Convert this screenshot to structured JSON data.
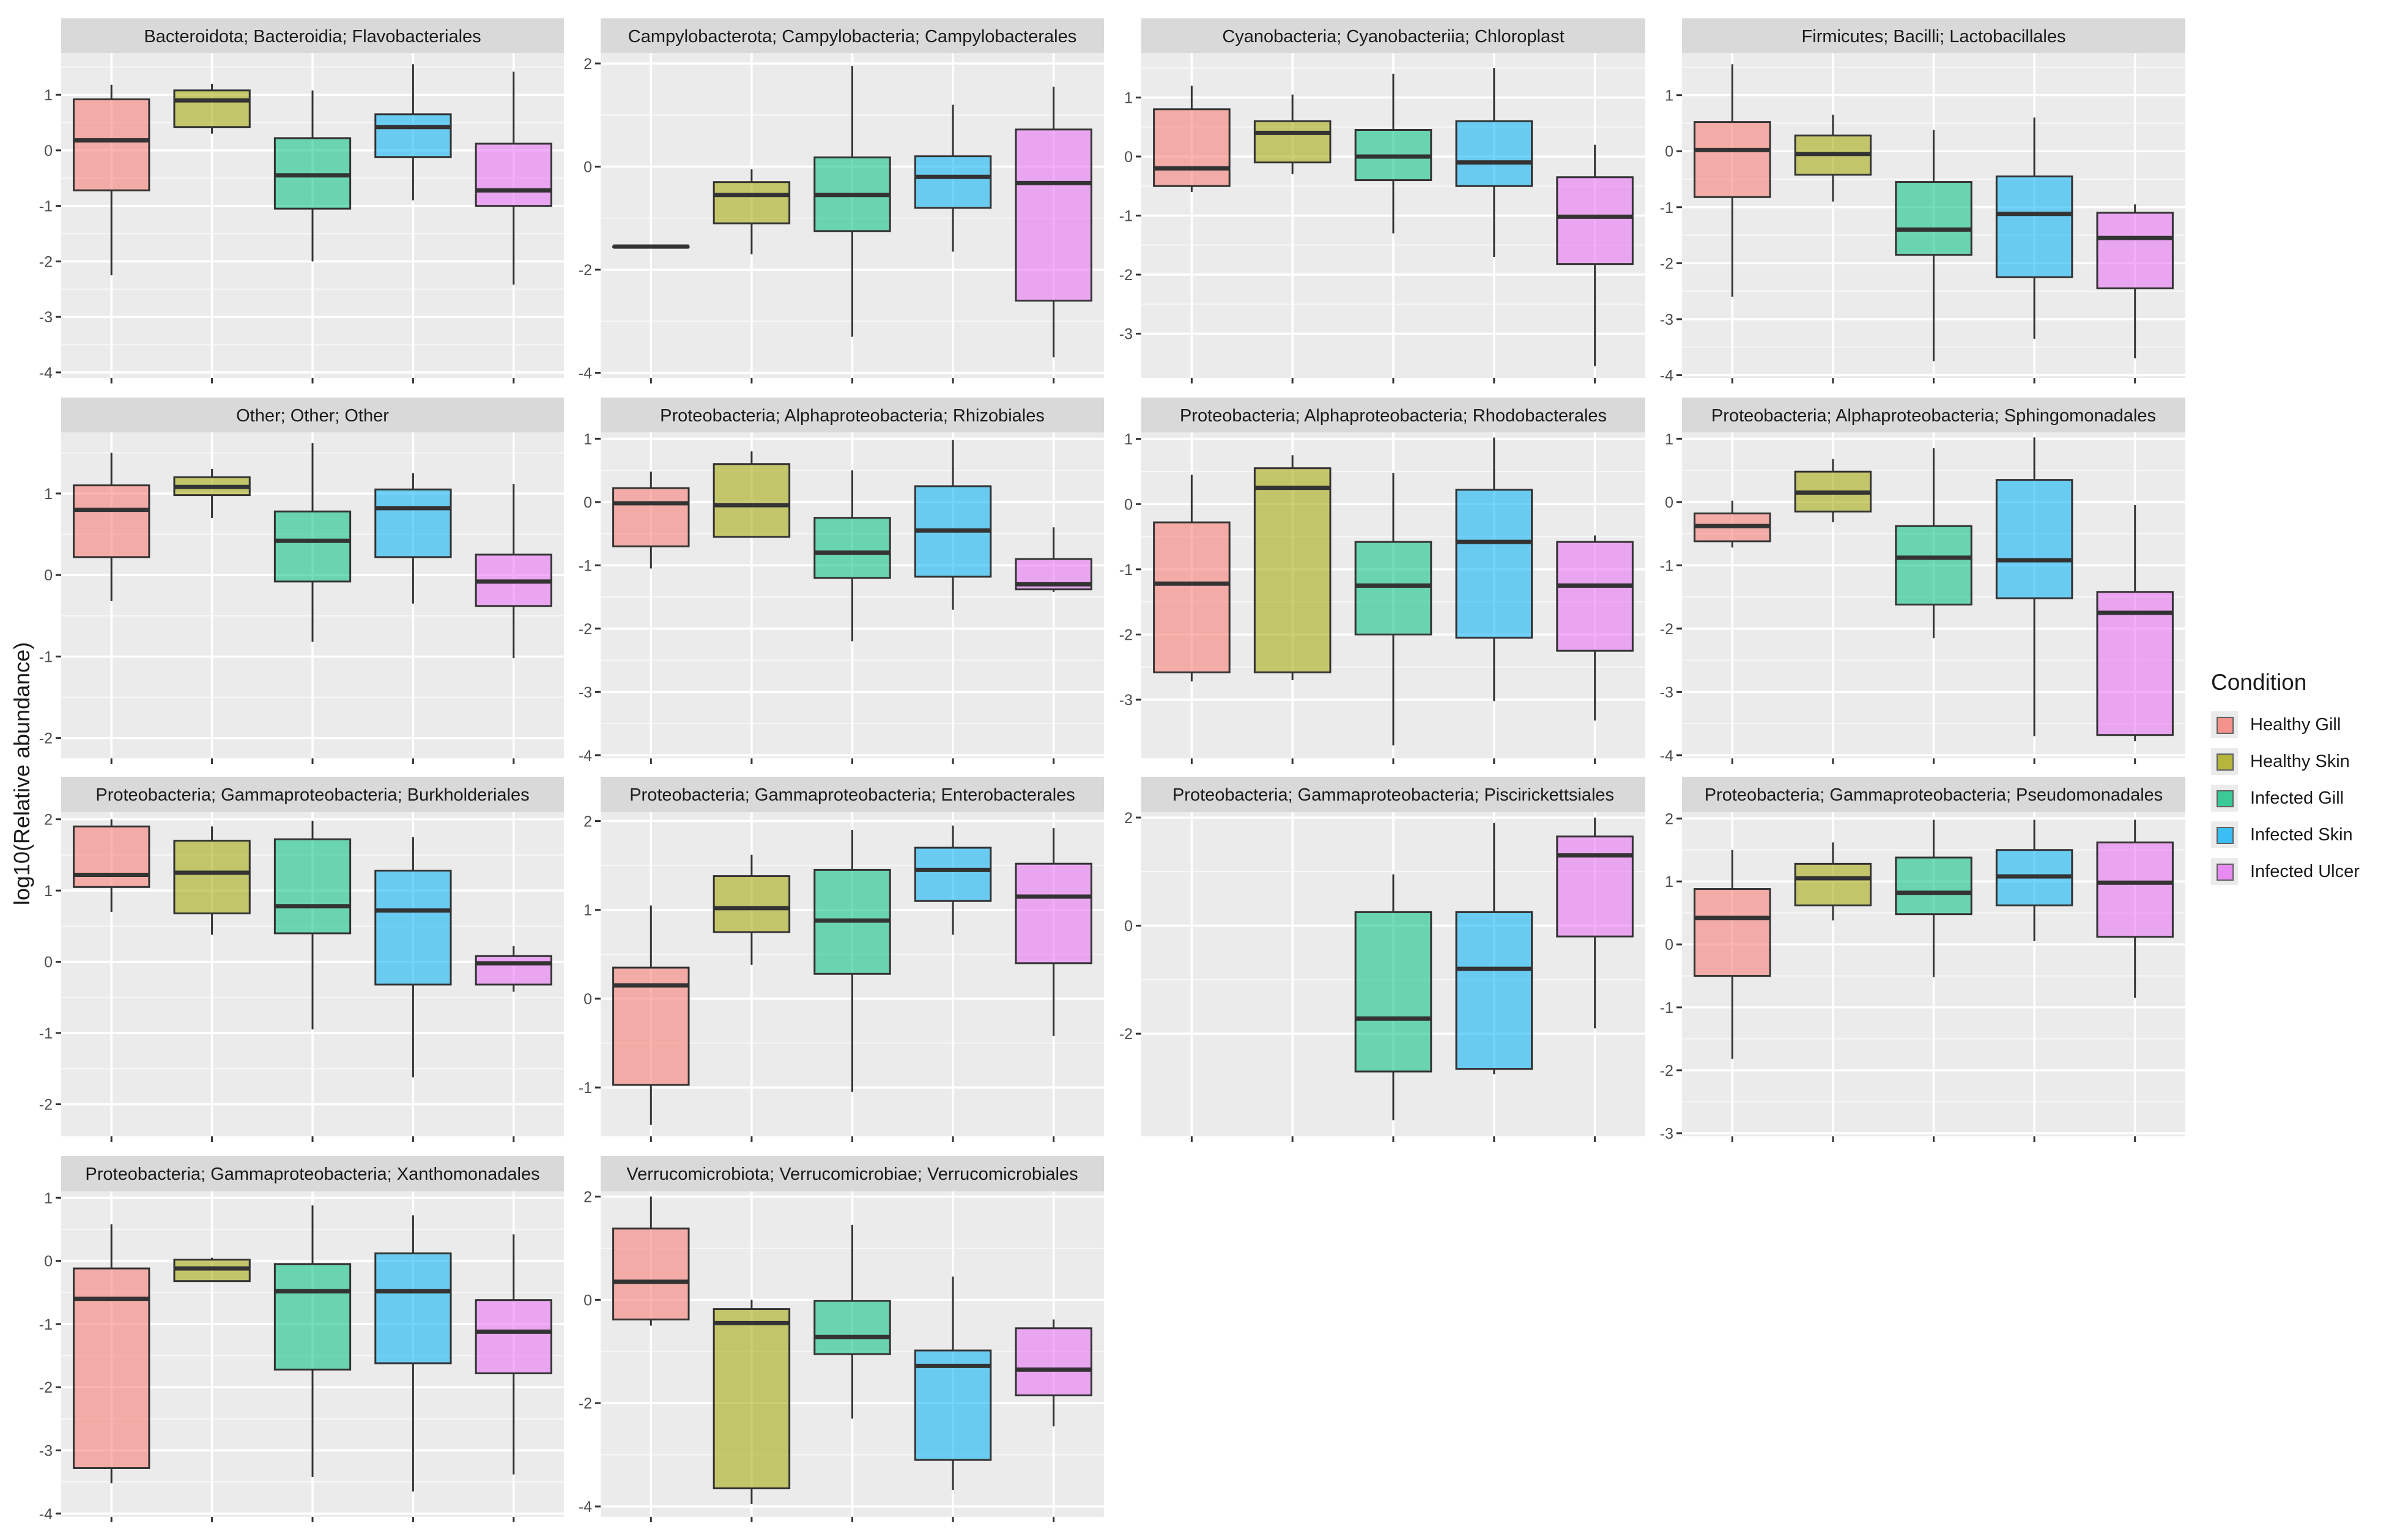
{
  "chart_data": {
    "type": "boxplot",
    "ylabel": "log10(Relative abundance)",
    "legend": {
      "title": "Condition",
      "position": "right",
      "items": [
        {
          "label": "Healthy Gill",
          "color": "#F8766D"
        },
        {
          "label": "Healthy Skin",
          "color": "#A3A500"
        },
        {
          "label": "Infected Gill",
          "color": "#00BF7D"
        },
        {
          "label": "Infected Skin",
          "color": "#00B0F6"
        },
        {
          "label": "Infected Ulcer",
          "color": "#E76BF3"
        }
      ]
    },
    "categories": [
      "Healthy Gill",
      "Healthy Skin",
      "Infected Gill",
      "Infected Skin",
      "Infected Ulcer"
    ],
    "grid": true,
    "facets": [
      {
        "title": "Bacteroidota; Bacteroidia; Flavobacteriales",
        "ylim": [
          -4.1,
          1.75
        ],
        "yticks": [
          1,
          0,
          -1,
          -2,
          -3,
          -4
        ],
        "boxes": [
          {
            "min": -2.25,
            "q1": -0.72,
            "median": 0.18,
            "q3": 0.92,
            "max": 1.18
          },
          {
            "min": 0.3,
            "q1": 0.42,
            "median": 0.9,
            "q3": 1.08,
            "max": 1.2
          },
          {
            "min": -2.0,
            "q1": -1.05,
            "median": -0.45,
            "q3": 0.22,
            "max": 1.08
          },
          {
            "min": -0.9,
            "q1": -0.12,
            "median": 0.42,
            "q3": 0.65,
            "max": 1.55
          },
          {
            "min": -2.42,
            "q1": -1.0,
            "median": -0.72,
            "q3": 0.12,
            "max": 1.42
          }
        ]
      },
      {
        "title": "Campylobacterota; Campylobacteria; Campylobacterales",
        "ylim": [
          -4.1,
          2.2
        ],
        "yticks": [
          2,
          0,
          -2,
          -4
        ],
        "boxes": [
          {
            "min": -1.55,
            "q1": -1.55,
            "median": -1.55,
            "q3": -1.55,
            "max": -1.55
          },
          {
            "min": -1.7,
            "q1": -1.1,
            "median": -0.55,
            "q3": -0.3,
            "max": -0.05
          },
          {
            "min": -3.3,
            "q1": -1.25,
            "median": -0.55,
            "q3": 0.18,
            "max": 1.95
          },
          {
            "min": -1.65,
            "q1": -0.8,
            "median": -0.2,
            "q3": 0.2,
            "max": 1.2
          },
          {
            "min": -3.7,
            "q1": -2.6,
            "median": -0.32,
            "q3": 0.72,
            "max": 1.55
          }
        ]
      },
      {
        "title": "Cyanobacteria; Cyanobacteriia; Chloroplast",
        "ylim": [
          -3.75,
          1.75
        ],
        "yticks": [
          1,
          0,
          -1,
          -2,
          -3
        ],
        "boxes": [
          {
            "min": -0.6,
            "q1": -0.5,
            "median": -0.2,
            "q3": 0.8,
            "max": 1.2
          },
          {
            "min": -0.3,
            "q1": -0.1,
            "median": 0.4,
            "q3": 0.6,
            "max": 1.05
          },
          {
            "min": -1.3,
            "q1": -0.4,
            "median": 0.0,
            "q3": 0.45,
            "max": 1.4
          },
          {
            "min": -1.7,
            "q1": -0.5,
            "median": -0.1,
            "q3": 0.6,
            "max": 1.5
          },
          {
            "min": -3.55,
            "q1": -1.82,
            "median": -1.02,
            "q3": -0.35,
            "max": 0.2
          }
        ]
      },
      {
        "title": "Firmicutes; Bacilli; Lactobacillales",
        "ylim": [
          -4.05,
          1.75
        ],
        "yticks": [
          1,
          0,
          -1,
          -2,
          -3,
          -4
        ],
        "boxes": [
          {
            "min": -2.6,
            "q1": -0.82,
            "median": 0.02,
            "q3": 0.52,
            "max": 1.55
          },
          {
            "min": -0.9,
            "q1": -0.42,
            "median": -0.05,
            "q3": 0.28,
            "max": 0.65
          },
          {
            "min": -3.75,
            "q1": -1.85,
            "median": -1.4,
            "q3": -0.55,
            "max": 0.38
          },
          {
            "min": -3.35,
            "q1": -2.25,
            "median": -1.12,
            "q3": -0.45,
            "max": 0.6
          },
          {
            "min": -3.7,
            "q1": -2.45,
            "median": -1.55,
            "q3": -1.1,
            "max": -0.95
          }
        ]
      },
      {
        "title": "Other; Other; Other",
        "ylim": [
          -2.25,
          1.75
        ],
        "yticks": [
          1,
          0,
          -1,
          -2
        ],
        "boxes": [
          {
            "min": -0.32,
            "q1": 0.22,
            "median": 0.8,
            "q3": 1.1,
            "max": 1.5
          },
          {
            "min": 0.7,
            "q1": 0.98,
            "median": 1.08,
            "q3": 1.2,
            "max": 1.3
          },
          {
            "min": -0.82,
            "q1": -0.08,
            "median": 0.42,
            "q3": 0.78,
            "max": 1.62
          },
          {
            "min": -0.35,
            "q1": 0.22,
            "median": 0.82,
            "q3": 1.05,
            "max": 1.25
          },
          {
            "min": -1.02,
            "q1": -0.38,
            "median": -0.08,
            "q3": 0.25,
            "max": 1.12
          }
        ]
      },
      {
        "title": "Proteobacteria; Alphaproteobacteria; Rhizobiales",
        "ylim": [
          -4.05,
          1.1
        ],
        "yticks": [
          1,
          0,
          -1,
          -2,
          -3,
          -4
        ],
        "boxes": [
          {
            "min": -1.05,
            "q1": -0.7,
            "median": -0.02,
            "q3": 0.22,
            "max": 0.48
          },
          {
            "min": -0.55,
            "q1": -0.55,
            "median": -0.05,
            "q3": 0.6,
            "max": 0.8
          },
          {
            "min": -2.2,
            "q1": -1.2,
            "median": -0.8,
            "q3": -0.25,
            "max": 0.5
          },
          {
            "min": -1.7,
            "q1": -1.18,
            "median": -0.45,
            "q3": 0.25,
            "max": 0.98
          },
          {
            "min": -1.42,
            "q1": -1.38,
            "median": -1.3,
            "q3": -0.9,
            "max": -0.4
          }
        ]
      },
      {
        "title": "Proteobacteria; Alphaproteobacteria; Rhodobacterales",
        "ylim": [
          -3.9,
          1.1
        ],
        "yticks": [
          1,
          0,
          -1,
          -2,
          -3
        ],
        "boxes": [
          {
            "min": -2.72,
            "q1": -2.58,
            "median": -1.22,
            "q3": -0.28,
            "max": 0.45
          },
          {
            "min": -2.7,
            "q1": -2.58,
            "median": 0.25,
            "q3": 0.55,
            "max": 0.75
          },
          {
            "min": -3.7,
            "q1": -2.0,
            "median": -1.25,
            "q3": -0.58,
            "max": 0.48
          },
          {
            "min": -3.02,
            "q1": -2.05,
            "median": -0.58,
            "q3": 0.22,
            "max": 1.02
          },
          {
            "min": -3.32,
            "q1": -2.25,
            "median": -1.25,
            "q3": -0.58,
            "max": -0.48
          }
        ]
      },
      {
        "title": "Proteobacteria; Alphaproteobacteria; Sphingomonadales",
        "ylim": [
          -4.05,
          1.1
        ],
        "yticks": [
          1,
          0,
          -1,
          -2,
          -3,
          -4
        ],
        "boxes": [
          {
            "min": -0.72,
            "q1": -0.62,
            "median": -0.38,
            "q3": -0.18,
            "max": 0.02
          },
          {
            "min": -0.32,
            "q1": -0.15,
            "median": 0.15,
            "q3": 0.48,
            "max": 0.68
          },
          {
            "min": -2.15,
            "q1": -1.62,
            "median": -0.88,
            "q3": -0.38,
            "max": 0.85
          },
          {
            "min": -3.7,
            "q1": -1.52,
            "median": -0.92,
            "q3": 0.35,
            "max": 1.02
          },
          {
            "min": -3.78,
            "q1": -3.68,
            "median": -1.75,
            "q3": -1.42,
            "max": -0.05
          }
        ]
      },
      {
        "title": "Proteobacteria; Gammaproteobacteria; Burkholderiales",
        "ylim": [
          -2.45,
          2.1
        ],
        "yticks": [
          2,
          1,
          0,
          -1,
          -2
        ],
        "boxes": [
          {
            "min": 0.7,
            "q1": 1.05,
            "median": 1.22,
            "q3": 1.9,
            "max": 2.0
          },
          {
            "min": 0.38,
            "q1": 0.68,
            "median": 1.25,
            "q3": 1.7,
            "max": 1.9
          },
          {
            "min": -0.95,
            "q1": 0.4,
            "median": 0.78,
            "q3": 1.72,
            "max": 1.98
          },
          {
            "min": -1.62,
            "q1": -0.32,
            "median": 0.72,
            "q3": 1.28,
            "max": 1.75
          },
          {
            "min": -0.42,
            "q1": -0.32,
            "median": -0.02,
            "q3": 0.08,
            "max": 0.22
          }
        ]
      },
      {
        "title": "Proteobacteria; Gammaproteobacteria; Enterobacterales",
        "ylim": [
          -1.55,
          2.1
        ],
        "yticks": [
          2,
          1,
          0,
          -1
        ],
        "boxes": [
          {
            "min": -1.42,
            "q1": -0.97,
            "median": 0.15,
            "q3": 0.35,
            "max": 1.05
          },
          {
            "min": 0.38,
            "q1": 0.75,
            "median": 1.02,
            "q3": 1.38,
            "max": 1.62
          },
          {
            "min": -1.05,
            "q1": 0.28,
            "median": 0.88,
            "q3": 1.45,
            "max": 1.9
          },
          {
            "min": 0.72,
            "q1": 1.1,
            "median": 1.45,
            "q3": 1.7,
            "max": 1.95
          },
          {
            "min": -0.42,
            "q1": 0.4,
            "median": 1.15,
            "q3": 1.52,
            "max": 1.92
          }
        ]
      },
      {
        "title": "Proteobacteria; Gammaproteobacteria; Piscirickettsiales",
        "ylim": [
          -3.9,
          2.1
        ],
        "yticks": [
          2,
          0,
          -2
        ],
        "boxes": [
          null,
          null,
          {
            "min": -3.6,
            "q1": -2.7,
            "median": -1.72,
            "q3": 0.25,
            "max": 0.95
          },
          {
            "min": -2.75,
            "q1": -2.65,
            "median": -0.8,
            "q3": 0.25,
            "max": 1.9
          },
          {
            "min": -1.9,
            "q1": -0.2,
            "median": 1.3,
            "q3": 1.65,
            "max": 2.0
          }
        ]
      },
      {
        "title": "Proteobacteria; Gammaproteobacteria; Pseudomonadales",
        "ylim": [
          -3.05,
          2.1
        ],
        "yticks": [
          2,
          1,
          0,
          -1,
          -2,
          -3
        ],
        "boxes": [
          {
            "min": -1.82,
            "q1": -0.5,
            "median": 0.42,
            "q3": 0.88,
            "max": 1.5
          },
          {
            "min": 0.38,
            "q1": 0.62,
            "median": 1.05,
            "q3": 1.28,
            "max": 1.62
          },
          {
            "min": -0.52,
            "q1": 0.48,
            "median": 0.82,
            "q3": 1.38,
            "max": 1.98
          },
          {
            "min": 0.05,
            "q1": 0.62,
            "median": 1.08,
            "q3": 1.5,
            "max": 1.98
          },
          {
            "min": -0.85,
            "q1": 0.12,
            "median": 0.98,
            "q3": 1.62,
            "max": 1.98
          }
        ]
      },
      {
        "title": "Proteobacteria; Gammaproteobacteria; Xanthomonadales",
        "ylim": [
          -4.05,
          1.1
        ],
        "yticks": [
          1,
          0,
          -1,
          -2,
          -3,
          -4
        ],
        "boxes": [
          {
            "min": -3.52,
            "q1": -3.28,
            "median": -0.6,
            "q3": -0.12,
            "max": 0.58
          },
          {
            "min": -0.32,
            "q1": -0.32,
            "median": -0.12,
            "q3": 0.02,
            "max": 0.05
          },
          {
            "min": -3.42,
            "q1": -1.72,
            "median": -0.48,
            "q3": -0.05,
            "max": 0.88
          },
          {
            "min": -3.65,
            "q1": -1.62,
            "median": -0.48,
            "q3": 0.12,
            "max": 0.72
          },
          {
            "min": -3.38,
            "q1": -1.78,
            "median": -1.12,
            "q3": -0.62,
            "max": 0.42
          }
        ]
      },
      {
        "title": "Verrucomicrobiota; Verrucomicrobiae; Verrucomicrobiales",
        "ylim": [
          -4.2,
          2.1
        ],
        "yticks": [
          2,
          0,
          -2,
          -4
        ],
        "boxes": [
          {
            "min": -0.5,
            "q1": -0.38,
            "median": 0.35,
            "q3": 1.38,
            "max": 2.0
          },
          {
            "min": -3.95,
            "q1": -3.65,
            "median": -0.45,
            "q3": -0.18,
            "max": 0.0
          },
          {
            "min": -2.3,
            "q1": -1.05,
            "median": -0.72,
            "q3": -0.02,
            "max": 1.45
          },
          {
            "min": -3.68,
            "q1": -3.1,
            "median": -1.28,
            "q3": -0.98,
            "max": 0.45
          },
          {
            "min": -2.45,
            "q1": -1.85,
            "median": -1.35,
            "q3": -0.55,
            "max": -0.38
          }
        ]
      }
    ]
  }
}
